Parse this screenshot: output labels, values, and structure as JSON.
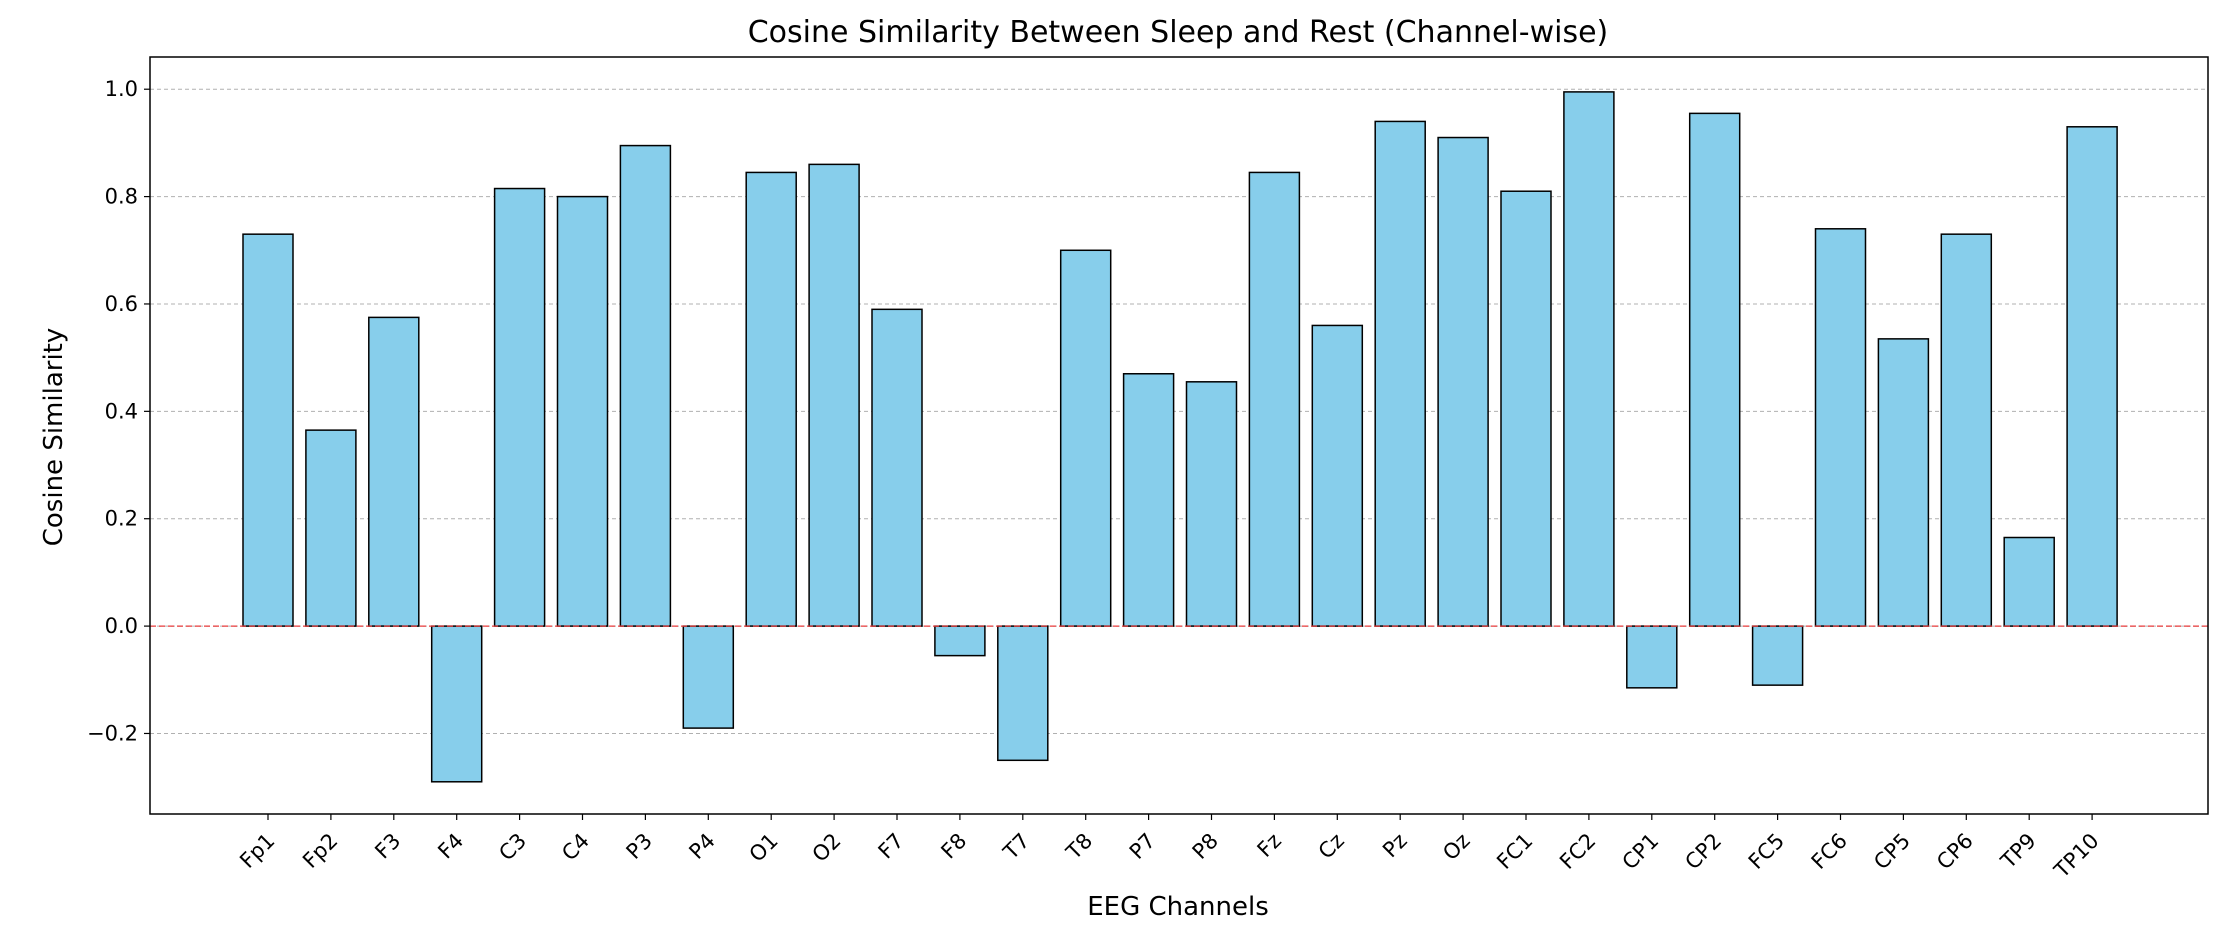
{
  "chart_data": {
    "type": "bar",
    "title": "Cosine Similarity Between Sleep and Rest (Channel-wise)",
    "xlabel": "EEG Channels",
    "ylabel": "Cosine Similarity",
    "ylim": [
      -0.35,
      1.06
    ],
    "yticks": [
      -0.2,
      0.0,
      0.2,
      0.4,
      0.6,
      0.8,
      1.0
    ],
    "ytick_labels": [
      "−0.2",
      "0.0",
      "0.2",
      "0.4",
      "0.6",
      "0.8",
      "1.0"
    ],
    "grid": "y-dashed",
    "reference_line": {
      "y": 0.0,
      "color": "#e83b3b",
      "style": "dashed"
    },
    "bar_color": "#87ceeb",
    "edge_color": "#000000",
    "categories": [
      "Fp1",
      "Fp2",
      "F3",
      "F4",
      "C3",
      "C4",
      "P3",
      "P4",
      "O1",
      "O2",
      "F7",
      "F8",
      "T7",
      "T8",
      "P7",
      "P8",
      "Fz",
      "Cz",
      "Pz",
      "Oz",
      "FC1",
      "FC2",
      "CP1",
      "CP2",
      "FC5",
      "FC6",
      "CP5",
      "CP6",
      "TP9",
      "TP10"
    ],
    "values": [
      0.73,
      0.365,
      0.575,
      -0.29,
      0.815,
      0.8,
      0.895,
      -0.19,
      0.845,
      0.86,
      0.59,
      -0.055,
      -0.25,
      0.7,
      0.47,
      0.455,
      0.845,
      0.56,
      0.94,
      0.91,
      0.81,
      0.995,
      -0.115,
      0.955,
      -0.11,
      0.74,
      0.535,
      0.73,
      0.165,
      0.93
    ]
  }
}
